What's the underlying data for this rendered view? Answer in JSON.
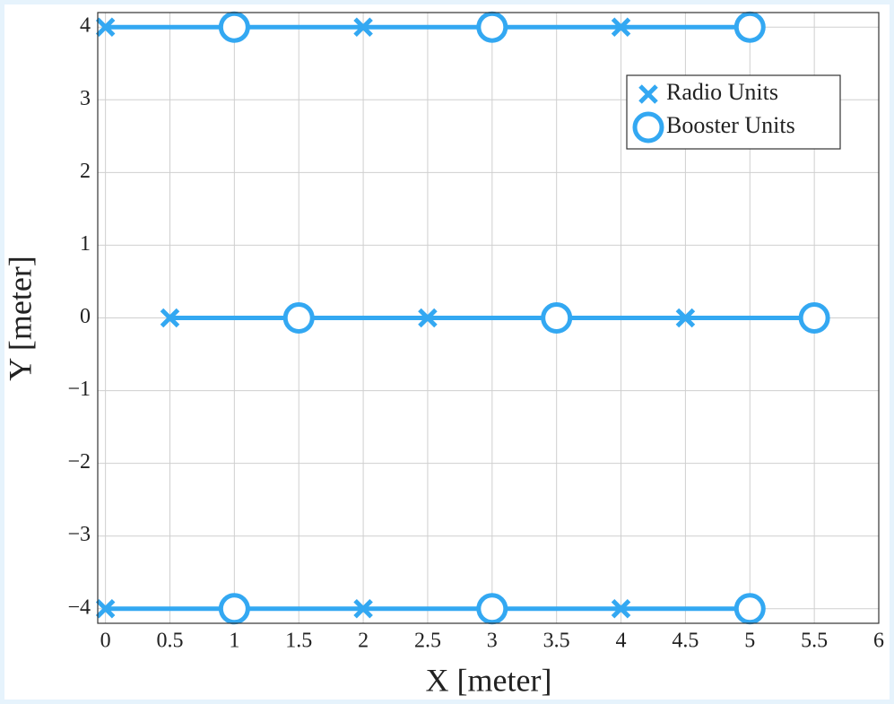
{
  "chart_data": {
    "type": "scatter",
    "x_label": "X [meter]",
    "y_label": "Y [meter]",
    "xlim": [
      -0.06,
      6
    ],
    "ylim": [
      -4.2,
      4.2
    ],
    "xticks": [
      0,
      0.5,
      1,
      1.5,
      2,
      2.5,
      3,
      3.5,
      4,
      4.5,
      5,
      5.5,
      6
    ],
    "yticks": [
      {
        "value": -4,
        "label": "−4"
      },
      {
        "value": -3,
        "label": "−3"
      },
      {
        "value": -2,
        "label": "−2"
      },
      {
        "value": -1,
        "label": "−1"
      },
      0,
      1,
      2,
      3,
      4
    ],
    "grid": true,
    "legend": "upper right",
    "connect_rows": true,
    "series": [
      {
        "name": "Radio Units",
        "color": "#33a8f2",
        "marker": "x",
        "x": [
          0,
          2,
          4,
          0.5,
          2.5,
          4.5,
          0,
          2,
          4
        ],
        "values": [
          4,
          4,
          4,
          0,
          0,
          0,
          -4,
          -4,
          -4
        ]
      },
      {
        "name": "Booster Units",
        "color": "#33a8f2",
        "marker": "o",
        "x": [
          1,
          3,
          5,
          1.5,
          3.5,
          5.5,
          1,
          3,
          5
        ],
        "values": [
          4,
          4,
          4,
          0,
          0,
          0,
          -4,
          -4,
          -4
        ]
      }
    ]
  }
}
